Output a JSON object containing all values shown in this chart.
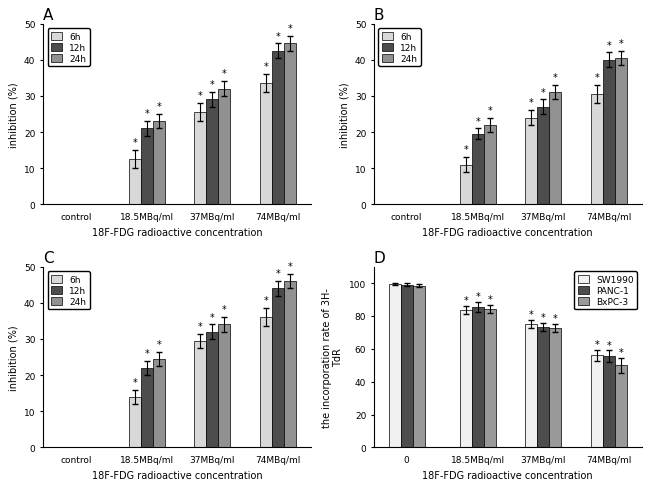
{
  "panel_A": {
    "title": "A",
    "categories": [
      "control",
      "18.5MBq/ml",
      "37MBq/ml",
      "74MBq/ml"
    ],
    "series": {
      "6h": [
        0,
        12.5,
        25.5,
        33.5
      ],
      "12h": [
        0,
        21.0,
        29.0,
        42.5
      ],
      "24h": [
        0,
        23.0,
        32.0,
        44.5
      ]
    },
    "errors": {
      "6h": [
        0,
        2.5,
        2.5,
        2.5
      ],
      "12h": [
        0,
        2.0,
        2.0,
        2.0
      ],
      "24h": [
        0,
        2.0,
        2.0,
        2.0
      ]
    },
    "ylabel": "inhibition (%)",
    "xlabel": "18F-FDG radioactive concentration",
    "ylim": [
      0,
      50
    ]
  },
  "panel_B": {
    "title": "B",
    "categories": [
      "control",
      "18.5MBq/ml",
      "37MBq/ml",
      "74MBq/ml"
    ],
    "series": {
      "6h": [
        0,
        11.0,
        24.0,
        30.5
      ],
      "12h": [
        0,
        19.5,
        27.0,
        40.0
      ],
      "24h": [
        0,
        22.0,
        31.0,
        40.5
      ]
    },
    "errors": {
      "6h": [
        0,
        2.0,
        2.0,
        2.5
      ],
      "12h": [
        0,
        1.5,
        2.0,
        2.0
      ],
      "24h": [
        0,
        2.0,
        2.0,
        2.0
      ]
    },
    "ylabel": "inhibition (%)",
    "xlabel": "18F-FDG radioactive concentration",
    "ylim": [
      0,
      50
    ]
  },
  "panel_C": {
    "title": "C",
    "categories": [
      "control",
      "18.5MBq/ml",
      "37MBq/ml",
      "74MBq/ml"
    ],
    "series": {
      "6h": [
        0,
        14.0,
        29.5,
        36.0
      ],
      "12h": [
        0,
        22.0,
        32.0,
        44.0
      ],
      "24h": [
        0,
        24.5,
        34.0,
        46.0
      ]
    },
    "errors": {
      "6h": [
        0,
        2.0,
        2.0,
        2.5
      ],
      "12h": [
        0,
        2.0,
        2.0,
        2.0
      ],
      "24h": [
        0,
        2.0,
        2.0,
        2.0
      ]
    },
    "ylabel": "inhibition (%)",
    "xlabel": "18F-FDG radioactive concentration",
    "ylim": [
      0,
      50
    ]
  },
  "panel_D": {
    "title": "D",
    "categories": [
      "0",
      "18.5MBq/ml",
      "37MBq/ml",
      "74MBq/ml"
    ],
    "series": {
      "SW1990": [
        99.5,
        83.5,
        75.0,
        56.0
      ],
      "PANC-1": [
        99.0,
        85.5,
        73.5,
        55.5
      ],
      "BxPC-3": [
        98.5,
        84.0,
        72.5,
        50.0
      ]
    },
    "errors": {
      "SW1990": [
        0.8,
        2.5,
        2.5,
        3.5
      ],
      "PANC-1": [
        0.8,
        3.0,
        2.5,
        3.5
      ],
      "BxPC-3": [
        0.8,
        2.5,
        2.5,
        4.5
      ]
    },
    "ylabel": "the incorporation rate of 3H-\nTdR",
    "xlabel": "18F-FDG radioactive concentration",
    "ylim": [
      0,
      110
    ],
    "yticks": [
      0,
      20,
      40,
      60,
      80,
      100
    ]
  },
  "colors": {
    "6h": "#d8d8d8",
    "12h": "#4d4d4d",
    "24h": "#919191",
    "SW1990": "#f0f0f0",
    "PANC-1": "#4d4d4d",
    "BxPC-3": "#999999"
  },
  "bar_width": 0.22,
  "figure_bg": "#ffffff"
}
